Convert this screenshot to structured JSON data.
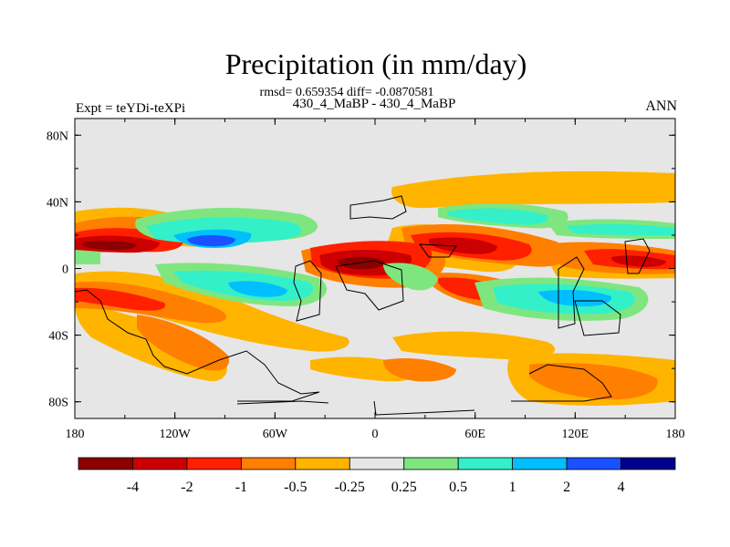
{
  "chart_data": {
    "type": "heatmap",
    "title": "Precipitation (in mm/day)",
    "stats_line": "rmsd= 0.659354 diff= -0.0870581",
    "case_line": "430_4_MaBP - 430_4_MaBP",
    "experiment": "Expt = teYDi-teXPi",
    "season": "ANN",
    "x_ticks": [
      "180",
      "120W",
      "60W",
      "0",
      "60E",
      "120E",
      "180"
    ],
    "x_range": [
      -180,
      180
    ],
    "y_ticks": [
      "80N",
      "40N",
      "0",
      "40S",
      "80S"
    ],
    "y_range": [
      -90,
      90
    ],
    "colorbar": {
      "levels": [
        "-4",
        "-2",
        "-1",
        "-0.5",
        "-0.25",
        "0.25",
        "0.5",
        "1",
        "2",
        "4"
      ],
      "colors": [
        "#8b0000",
        "#cc0000",
        "#ff2000",
        "#ff7f00",
        "#ffb400",
        "#e6e6e6",
        "#7fe67f",
        "#33f0c8",
        "#00bfff",
        "#1a50ff",
        "#00008b"
      ]
    }
  },
  "colors": {
    "land_outline": "#000000",
    "background_field": "#e6e6e6"
  }
}
